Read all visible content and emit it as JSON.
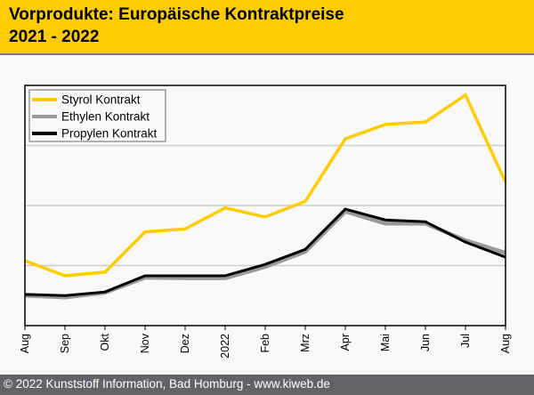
{
  "header": {
    "title": "Vorprodukte: Europäische Kontraktpreise",
    "subtitle": "2021 - 2022"
  },
  "footer": {
    "copyright": "© 2022 Kunststoff Information, Bad Homburg - www.kiweb.de"
  },
  "colors": {
    "header_bg": "#ffcc00",
    "footer_bg": "#636367",
    "styrol": "#ffcc00",
    "ethylen": "#999999",
    "propylen": "#000000",
    "grid": "#cccccc"
  },
  "chart_data": {
    "type": "line",
    "title": "Vorprodukte: Europäische Kontraktpreise 2021 - 2022",
    "xlabel": "",
    "ylabel": "",
    "y_axis_labels_shown": false,
    "ylim": [
      0,
      4
    ],
    "y_gridlines": [
      1,
      2,
      3
    ],
    "grid": true,
    "legend_position": "top-left",
    "categories": [
      "Aug",
      "Sep",
      "Okt",
      "Nov",
      "Dez",
      "2022",
      "Feb",
      "Mrz",
      "Apr",
      "Mai",
      "Jun",
      "Jul",
      "Aug"
    ],
    "series": [
      {
        "name": "Styrol Kontrakt",
        "color": "#ffcc00",
        "values": [
          1.08,
          0.83,
          0.89,
          1.56,
          1.61,
          1.96,
          1.81,
          2.07,
          3.11,
          3.35,
          3.39,
          3.84,
          2.39
        ]
      },
      {
        "name": "Ethylen Kontrakt",
        "color": "#999999",
        "values": [
          0.5,
          0.47,
          0.55,
          0.8,
          0.79,
          0.79,
          0.98,
          1.23,
          1.9,
          1.7,
          1.7,
          1.42,
          1.21
        ]
      },
      {
        "name": "Propylen Kontrakt",
        "color": "#000000",
        "values": [
          0.52,
          0.5,
          0.56,
          0.83,
          0.83,
          0.83,
          1.02,
          1.27,
          1.94,
          1.76,
          1.73,
          1.39,
          1.14
        ]
      }
    ]
  }
}
